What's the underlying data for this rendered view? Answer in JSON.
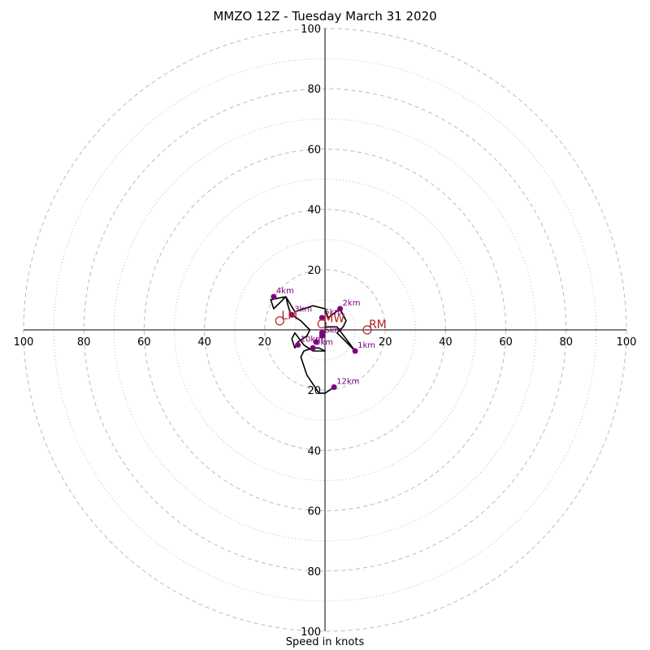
{
  "chart_data": {
    "type": "hodograph",
    "title": "MMZO 12Z - Tuesday March 31 2020",
    "xlabel": "Speed in knots",
    "rings": [
      10,
      20,
      30,
      40,
      50,
      60,
      70,
      80,
      90,
      100
    ],
    "axis_ticks": [
      "100",
      "80",
      "60",
      "40",
      "20"
    ],
    "max_speed": 100,
    "grid_color": "#bbbbbb",
    "trace_color": "#000000",
    "height_marker_color": "#800080",
    "motion_color": "#b22222",
    "trace": [
      [
        0,
        1
      ],
      [
        4,
        1
      ],
      [
        7,
        -3
      ],
      [
        10,
        -7
      ],
      [
        6,
        -3
      ],
      [
        4,
        -1
      ],
      [
        6,
        1
      ],
      [
        7,
        3
      ],
      [
        5,
        7
      ],
      [
        1,
        4
      ],
      [
        0,
        7
      ],
      [
        -4,
        8
      ],
      [
        -10,
        6
      ],
      [
        -13,
        11
      ],
      [
        -18,
        10
      ],
      [
        -17,
        7
      ],
      [
        -13,
        11
      ],
      [
        -12,
        7
      ],
      [
        -11,
        5
      ],
      [
        -8,
        3
      ],
      [
        -5,
        0
      ],
      [
        -6,
        -2
      ],
      [
        -9,
        -4
      ],
      [
        -10,
        -6
      ],
      [
        -11,
        -3
      ],
      [
        -10,
        -1
      ],
      [
        -7,
        -5
      ],
      [
        -4,
        -7
      ],
      [
        0,
        -7
      ],
      [
        -2,
        -6
      ],
      [
        -4,
        -6
      ],
      [
        -7,
        -7
      ],
      [
        -8,
        -9
      ],
      [
        -7,
        -12
      ],
      [
        -6,
        -15
      ],
      [
        -4,
        -18
      ],
      [
        -2,
        -21
      ],
      [
        0,
        -21
      ],
      [
        3,
        -19
      ]
    ],
    "heights": [
      {
        "label": "1km",
        "u": 10,
        "v": -7
      },
      {
        "label": "2km",
        "u": 5,
        "v": 7
      },
      {
        "label": "3km",
        "u": -11,
        "v": 5
      },
      {
        "label": "4km",
        "u": -17,
        "v": 11
      },
      {
        "label": "5km",
        "u": -1,
        "v": 4
      },
      {
        "label": "6km",
        "u": -1,
        "v": -2
      },
      {
        "label": "9km",
        "u": -4,
        "v": -6
      },
      {
        "label": "10km",
        "u": -9,
        "v": -5
      },
      {
        "label": "12km",
        "u": 3,
        "v": -19
      }
    ],
    "extra_points": [
      {
        "u": -1,
        "v": -1
      },
      {
        "u": -3,
        "v": -4
      }
    ],
    "storm_motions": [
      {
        "label": "LM",
        "u": -15,
        "v": 3
      },
      {
        "label": "MW",
        "u": -1,
        "v": 2
      },
      {
        "label": "RM",
        "u": 14,
        "v": 0
      }
    ]
  }
}
